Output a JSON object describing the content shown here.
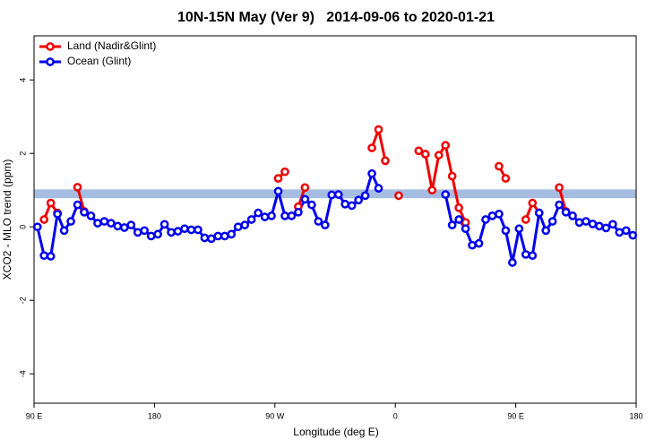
{
  "chart_data": {
    "type": "line",
    "title": "10N-15N May (Ver 9)   2014-09-06 to 2020-01-21",
    "xlabel": "Longitude (deg E)",
    "ylabel": "XCO2 - MLO trend (ppm)",
    "xlim": [
      90,
      540
    ],
    "xticks": [
      {
        "value": 90,
        "label": "90 E"
      },
      180,
      {
        "value": 270,
        "label": "90 W"
      },
      {
        "value": 360,
        "label": "0"
      },
      {
        "value": 450,
        "label": "90 E"
      },
      {
        "value": 540,
        "label": "180"
      }
    ],
    "ylim": [
      -4.8,
      5.2
    ],
    "yticks": [
      -4,
      -2,
      0,
      2,
      4
    ],
    "reference_band": {
      "range": [
        0.78,
        1.02
      ],
      "color": "#a4bde0"
    },
    "legend": "top-left",
    "x": [
      92.5,
      97.5,
      102.5,
      107.5,
      112.5,
      117.5,
      122.5,
      127.5,
      132.5,
      137.5,
      142.5,
      147.5,
      152.5,
      157.5,
      162.5,
      167.5,
      172.5,
      177.5,
      182.5,
      187.5,
      192.5,
      197.5,
      202.5,
      207.5,
      212.5,
      217.5,
      222.5,
      227.5,
      232.5,
      237.5,
      242.5,
      247.5,
      252.5,
      257.5,
      262.5,
      267.5,
      272.5,
      277.5,
      282.5,
      287.5,
      292.5,
      297.5,
      302.5,
      307.5,
      312.5,
      317.5,
      322.5,
      327.5,
      332.5,
      337.5,
      342.5,
      347.5,
      352.5,
      357.5,
      362.5,
      367.5,
      372.5,
      377.5,
      382.5,
      387.5,
      392.5,
      397.5,
      402.5,
      407.5,
      412.5,
      417.5,
      422.5,
      427.5,
      432.5,
      437.5,
      442.5,
      447.5,
      452.5,
      457.5,
      462.5,
      467.5,
      472.5,
      477.5,
      482.5,
      487.5,
      492.5,
      497.5,
      502.5,
      507.5,
      512.5,
      517.5,
      522.5,
      527.5,
      532.5,
      537.5
    ],
    "series": [
      {
        "name": "Land (Nadir&Glint)",
        "color": "#ee0000",
        "values": [
          null,
          0.2,
          0.65,
          0.38,
          null,
          null,
          1.08,
          0.42,
          null,
          null,
          null,
          null,
          null,
          null,
          null,
          null,
          null,
          null,
          null,
          null,
          null,
          null,
          null,
          null,
          null,
          null,
          null,
          null,
          null,
          null,
          null,
          null,
          null,
          null,
          null,
          null,
          1.32,
          1.5,
          null,
          0.55,
          1.07,
          null,
          null,
          null,
          null,
          null,
          null,
          null,
          null,
          null,
          2.15,
          2.65,
          1.8,
          null,
          0.85,
          null,
          null,
          2.07,
          1.98,
          1.0,
          1.95,
          2.22,
          1.38,
          0.52,
          0.12,
          null,
          null,
          null,
          null,
          1.65,
          1.32,
          null,
          null,
          0.2,
          0.65,
          0.38,
          null,
          null,
          1.07,
          0.42,
          null,
          null,
          null,
          null,
          null,
          null,
          null,
          null,
          null,
          null
        ]
      },
      {
        "name": "Ocean (Glint)",
        "color": "#0000ee",
        "values": [
          0.0,
          -0.78,
          -0.8,
          0.35,
          -0.1,
          0.15,
          0.6,
          0.4,
          0.3,
          0.1,
          0.15,
          0.1,
          0.02,
          -0.02,
          0.05,
          -0.15,
          -0.1,
          -0.25,
          -0.2,
          0.07,
          -0.15,
          -0.12,
          -0.05,
          -0.08,
          -0.08,
          -0.3,
          -0.32,
          -0.25,
          -0.25,
          -0.2,
          0.0,
          0.05,
          0.2,
          0.38,
          0.27,
          0.3,
          0.97,
          0.3,
          0.3,
          0.4,
          0.75,
          0.6,
          0.15,
          0.05,
          0.87,
          0.88,
          0.62,
          0.58,
          0.73,
          0.85,
          1.45,
          1.05,
          null,
          null,
          null,
          null,
          null,
          null,
          null,
          null,
          null,
          0.88,
          0.05,
          0.2,
          -0.05,
          -0.5,
          -0.45,
          0.2,
          0.3,
          0.35,
          -0.1,
          -0.97,
          -0.05,
          -0.75,
          -0.78,
          0.38,
          -0.1,
          0.15,
          0.6,
          0.4,
          0.3,
          0.12,
          0.15,
          0.08,
          0.02,
          -0.03,
          0.07,
          -0.15,
          -0.1,
          -0.23
        ]
      }
    ]
  }
}
